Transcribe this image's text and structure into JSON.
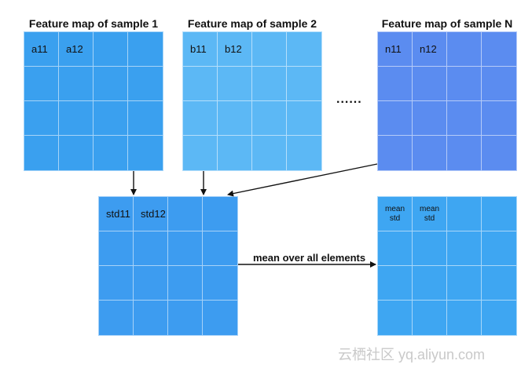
{
  "titles": {
    "sample1": "Feature map of sample 1",
    "sample2": "Feature map of sample 2",
    "sampleN": "Feature map of sample N"
  },
  "ellipsis": "......",
  "grids": {
    "sample1": [
      "a11",
      "a12"
    ],
    "sample2": [
      "b11",
      "b12"
    ],
    "sampleN": [
      "n11",
      "n12"
    ],
    "std": [
      "std11",
      "std12"
    ],
    "mean": [
      {
        "line1": "mean",
        "line2": "std"
      },
      {
        "line1": "mean",
        "line2": "std"
      }
    ]
  },
  "edge_label": "mean over all elements",
  "watermark": "云栖社区 yq.aliyun.com",
  "colors": {
    "sample1": "#3aa0ef",
    "sample2": "#5cb8f5",
    "sampleN": "#5b8cf0",
    "std": "#3d9cf0",
    "mean": "#3ea6f2"
  }
}
